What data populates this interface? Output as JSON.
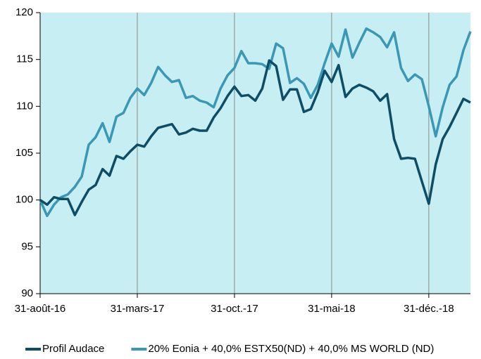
{
  "chart_data": {
    "type": "line",
    "categories": [
      "31-août-16",
      null,
      null,
      null,
      null,
      null,
      null,
      null,
      null,
      null,
      null,
      null,
      null,
      null,
      "31-mars-17",
      null,
      null,
      null,
      null,
      null,
      null,
      null,
      null,
      null,
      null,
      null,
      null,
      null,
      "31-oct.-17",
      null,
      null,
      null,
      null,
      null,
      null,
      null,
      null,
      null,
      null,
      null,
      null,
      null,
      "31-mai-18",
      null,
      null,
      null,
      null,
      null,
      null,
      null,
      null,
      null,
      null,
      null,
      null,
      null,
      "31-déc.-18",
      null,
      null,
      null,
      null,
      null,
      null
    ],
    "series": [
      {
        "name": "Profil Audace",
        "color": "#0e4d66",
        "values": [
          100,
          99.5,
          100.3,
          100.1,
          100.1,
          98.4,
          99.8,
          101.1,
          101.6,
          103.3,
          102.6,
          104.7,
          104.4,
          105.2,
          105.9,
          105.7,
          106.8,
          107.7,
          107.9,
          108.1,
          107.0,
          107.2,
          107.6,
          107.4,
          107.4,
          108.8,
          109.8,
          111.1,
          112.1,
          111.1,
          111.2,
          110.6,
          111.9,
          114.9,
          114.3,
          110.7,
          111.8,
          111.8,
          109.4,
          109.7,
          111.5,
          113.8,
          112.6,
          114.4,
          111.0,
          111.9,
          112.3,
          112.0,
          111.6,
          110.6,
          111.3,
          106.5,
          104.4,
          104.5,
          104.4,
          102.0,
          99.6,
          103.8,
          106.5,
          107.8,
          109.3,
          110.8,
          110.4
        ]
      },
      {
        "name": "20% Eonia + 40,0% ESTX50(ND) + 40,0% MS WORLD (ND)",
        "color": "#3a97b5",
        "values": [
          100,
          98.3,
          99.5,
          100.3,
          100.6,
          101.4,
          102.5,
          105.9,
          106.7,
          108.2,
          106.2,
          108.9,
          109.3,
          110.9,
          111.9,
          111.2,
          112.5,
          114.2,
          113.3,
          112.6,
          112.8,
          110.9,
          111.1,
          110.6,
          110.4,
          109.9,
          111.9,
          113.3,
          114.1,
          115.9,
          114.6,
          114.6,
          114.5,
          114.0,
          116.7,
          116.2,
          112.5,
          113.0,
          112.4,
          110.9,
          112.3,
          114.6,
          116.7,
          115.3,
          118.2,
          115.2,
          116.8,
          118.3,
          117.9,
          117.4,
          116.3,
          117.9,
          114.1,
          112.7,
          113.4,
          112.9,
          110.0,
          106.8,
          109.9,
          112.3,
          113.2,
          116.0,
          118.0
        ]
      }
    ],
    "ylim": [
      90,
      120
    ],
    "yticks": [
      90,
      95,
      100,
      105,
      110,
      115,
      120
    ],
    "xgrid": true,
    "background": "#c7eff3",
    "legend": "bottom"
  }
}
